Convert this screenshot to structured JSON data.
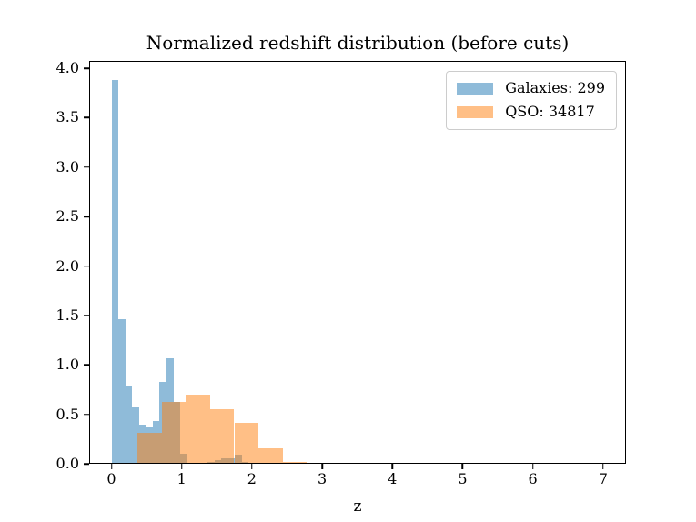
{
  "chart_data": {
    "type": "histogram",
    "title": "Normalized redshift distribution (before cuts)",
    "xlabel": "z",
    "ylabel": "",
    "normalized_density": true,
    "grid": false,
    "legend_position": "upper right",
    "axes": {
      "xlim": [
        -0.3175,
        7.3265
      ],
      "ylim": [
        0,
        4.0745
      ],
      "xticks": [
        "0",
        "1",
        "2",
        "3",
        "4",
        "5",
        "6",
        "7"
      ],
      "yticks": [
        "0.0",
        "0.5",
        "1.0",
        "1.5",
        "2.0",
        "2.5",
        "3.0",
        "3.5",
        "4.0"
      ]
    },
    "series": [
      {
        "name": "Galaxies: 299",
        "count": 299,
        "color": "#1f77b4",
        "alpha": 0.5,
        "bin_edges": [
          0.004,
          0.1015,
          0.199,
          0.2965,
          0.394,
          0.4915,
          0.589,
          0.6865,
          0.784,
          0.8815,
          0.979,
          1.0765,
          1.174,
          1.2715,
          1.369,
          1.4665,
          1.564,
          1.6615,
          1.759,
          1.8565,
          1.954
        ],
        "densities": [
          3.88,
          1.46,
          0.78,
          0.58,
          0.4,
          0.38,
          0.43,
          0.83,
          1.07,
          0.63,
          0.1,
          0,
          0,
          0,
          0.02,
          0.04,
          0.055,
          0.055,
          0.09,
          0.02
        ]
      },
      {
        "name": "QSO: 34817",
        "count": 34817,
        "color": "#ff7f0e",
        "alpha": 0.5,
        "bin_edges": [
          0.369,
          0.714,
          1.059,
          1.404,
          1.749,
          2.094,
          2.439,
          2.784
        ],
        "densities": [
          0.31,
          0.63,
          0.7,
          0.55,
          0.41,
          0.16,
          0.02
        ]
      }
    ]
  }
}
